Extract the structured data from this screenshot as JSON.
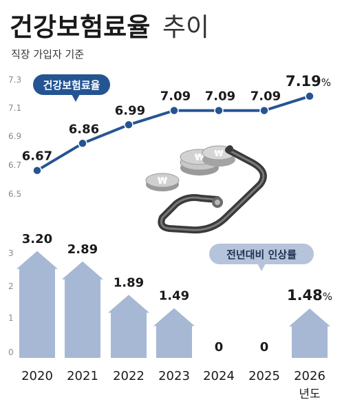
{
  "title_main": "건강보험료율",
  "title_sub": "추이",
  "subtitle": "직장 가입자 기준",
  "colors": {
    "line": "#255493",
    "bar": "#a6b8d3",
    "pill_dark": "#255493",
    "pill_light": "#b6c4db"
  },
  "chart_data": [
    {
      "type": "line",
      "legend_label": "건강보험료율",
      "x": [
        "2020",
        "2021",
        "2022",
        "2023",
        "2024",
        "2025",
        "2026"
      ],
      "values": [
        6.67,
        6.86,
        6.99,
        7.09,
        7.09,
        7.09,
        7.19
      ],
      "value_labels": [
        "6.67",
        "6.86",
        "6.99",
        "7.09",
        "7.09",
        "7.09",
        "7.19"
      ],
      "last_unit": "%",
      "yticks": [
        "7.3",
        "7.1",
        "6.9",
        "6.7",
        "6.5"
      ],
      "ylim": [
        6.5,
        7.3
      ]
    },
    {
      "type": "bar",
      "legend_label": "전년대비 인상률",
      "categories": [
        "2020",
        "2021",
        "2022",
        "2023",
        "2024",
        "2025",
        "2026"
      ],
      "x_suffix": "년도",
      "values": [
        3.2,
        2.89,
        1.89,
        1.49,
        0,
        0,
        1.48
      ],
      "value_labels": [
        "3.20",
        "2.89",
        "1.89",
        "1.49",
        "0",
        "0",
        "1.48"
      ],
      "last_unit": "%",
      "yticks": [
        "3",
        "2",
        "1",
        "0"
      ],
      "ylim": [
        0,
        3.2
      ]
    }
  ]
}
